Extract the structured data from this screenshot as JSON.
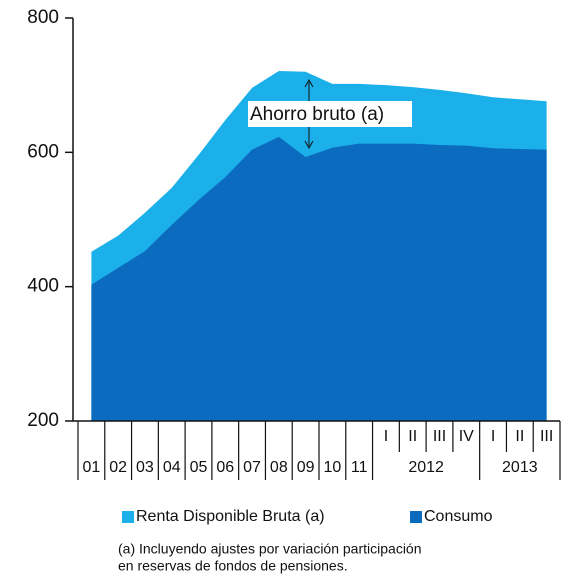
{
  "chart_data": {
    "type": "area",
    "categories": [
      "01",
      "02",
      "03",
      "04",
      "05",
      "06",
      "07",
      "08",
      "09",
      "10",
      "11",
      {
        "label": "I",
        "group": "2012"
      },
      {
        "label": "II",
        "group": "2012"
      },
      {
        "label": "III",
        "group": "2012"
      },
      {
        "label": "IV",
        "group": "2012"
      },
      {
        "label": "I",
        "group": "2013"
      },
      {
        "label": "II",
        "group": "2013"
      },
      {
        "label": "III",
        "group": "2013"
      }
    ],
    "series": [
      {
        "name": "Renta Disponible Bruta (a)",
        "color": "#1cb0ea",
        "values": [
          452,
          476,
          510,
          547,
          596,
          648,
          696,
          721,
          720,
          702,
          702,
          700,
          697,
          693,
          688,
          682,
          679,
          676
        ]
      },
      {
        "name": "Consumo",
        "color": "#0b6cbf",
        "values": [
          403,
          428,
          453,
          492,
          529,
          563,
          604,
          623,
          593,
          607,
          613,
          613,
          613,
          611,
          610,
          606,
          605,
          604
        ]
      }
    ],
    "ylim": [
      200,
      800
    ],
    "yticks": [
      200,
      400,
      600,
      800
    ],
    "annotation": "Ahorro bruto (a)",
    "footnote": [
      "(a) Incluyendo ajustes por variación participación",
      "en reservas de fondos de pensiones."
    ]
  }
}
